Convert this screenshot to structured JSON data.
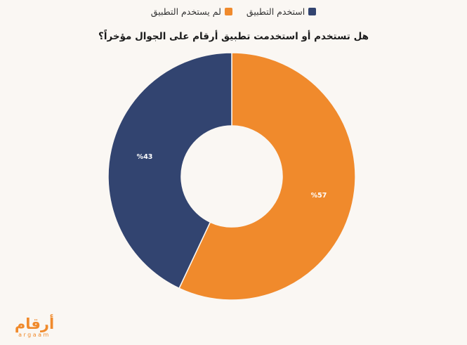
{
  "chart_data": {
    "type": "pie",
    "donut": true,
    "title": "هل تستخدم أو استخدمت تطبيق أرقام على الجوال مؤخراً؟",
    "slices": [
      {
        "name": "لم يستخدم التطبيق",
        "value": 57,
        "label": "%57",
        "color": "#f08a2c"
      },
      {
        "name": "استخدم التطبيق",
        "value": 43,
        "label": "%43",
        "color": "#324470"
      }
    ],
    "legend_position": "top"
  },
  "legend": [
    {
      "label": "استخدم التطبيق",
      "color": "#324470"
    },
    {
      "label": "لم يستخدم التطبيق",
      "color": "#f08a2c"
    }
  ],
  "logo": {
    "text": "أرقام",
    "subtext": "argaam"
  }
}
